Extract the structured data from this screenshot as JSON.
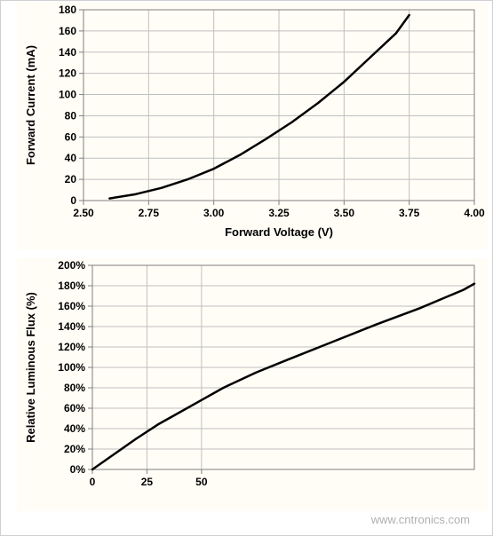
{
  "chart1": {
    "type": "line",
    "xlabel": "Forward Voltage (V)",
    "ylabel": "Forward Current (mA)",
    "label_fontsize": 13,
    "label_fontweight": "bold",
    "tick_fontsize": 12,
    "tick_fontweight": "bold",
    "xlim": [
      2.5,
      4.0
    ],
    "ylim": [
      0,
      180
    ],
    "xticks": [
      2.5,
      2.75,
      3.0,
      3.25,
      3.5,
      3.75,
      4.0
    ],
    "xtick_labels": [
      "2.50",
      "2.75",
      "3.00",
      "3.25",
      "3.50",
      "3.75",
      "4.00"
    ],
    "yticks": [
      0,
      20,
      40,
      60,
      80,
      100,
      120,
      140,
      160,
      180
    ],
    "ytick_labels": [
      "0",
      "20",
      "40",
      "60",
      "80",
      "100",
      "120",
      "140",
      "160",
      "180"
    ],
    "grid_color": "#c0c0c0",
    "axis_color": "#808080",
    "background_color": "#fffdf6",
    "line_color": "#000000",
    "line_width": 2.5,
    "series_x": [
      2.6,
      2.7,
      2.8,
      2.9,
      3.0,
      3.1,
      3.2,
      3.3,
      3.4,
      3.5,
      3.6,
      3.7,
      3.75
    ],
    "series_y": [
      2,
      6,
      12,
      20,
      30,
      43,
      58,
      74,
      92,
      112,
      135,
      158,
      175
    ]
  },
  "chart2": {
    "type": "line",
    "xlabel": "",
    "ylabel": "Relative Luminous Flux (%)",
    "label_fontsize": 13,
    "label_fontweight": "bold",
    "tick_fontsize": 12,
    "tick_fontweight": "bold",
    "xlim": [
      0,
      175
    ],
    "ylim": [
      0,
      200
    ],
    "xticks": [
      0,
      25,
      50
    ],
    "xtick_labels": [
      "0",
      "25",
      "50"
    ],
    "yticks": [
      0,
      20,
      40,
      60,
      80,
      100,
      120,
      140,
      160,
      180,
      200
    ],
    "ytick_labels": [
      "0%",
      "20%",
      "40%",
      "60%",
      "80%",
      "100%",
      "120%",
      "140%",
      "160%",
      "180%",
      "200%"
    ],
    "grid_color": "#c0c0c0",
    "axis_color": "#808080",
    "background_color": "#fffdf6",
    "line_color": "#000000",
    "line_width": 2.5,
    "series_x": [
      0,
      10,
      20,
      30,
      40,
      50,
      60,
      75,
      90,
      110,
      130,
      150,
      170,
      175
    ],
    "series_y": [
      0,
      15,
      30,
      44,
      56,
      68,
      80,
      95,
      108,
      125,
      142,
      158,
      176,
      182
    ]
  },
  "watermark": "www.cntronics.com"
}
